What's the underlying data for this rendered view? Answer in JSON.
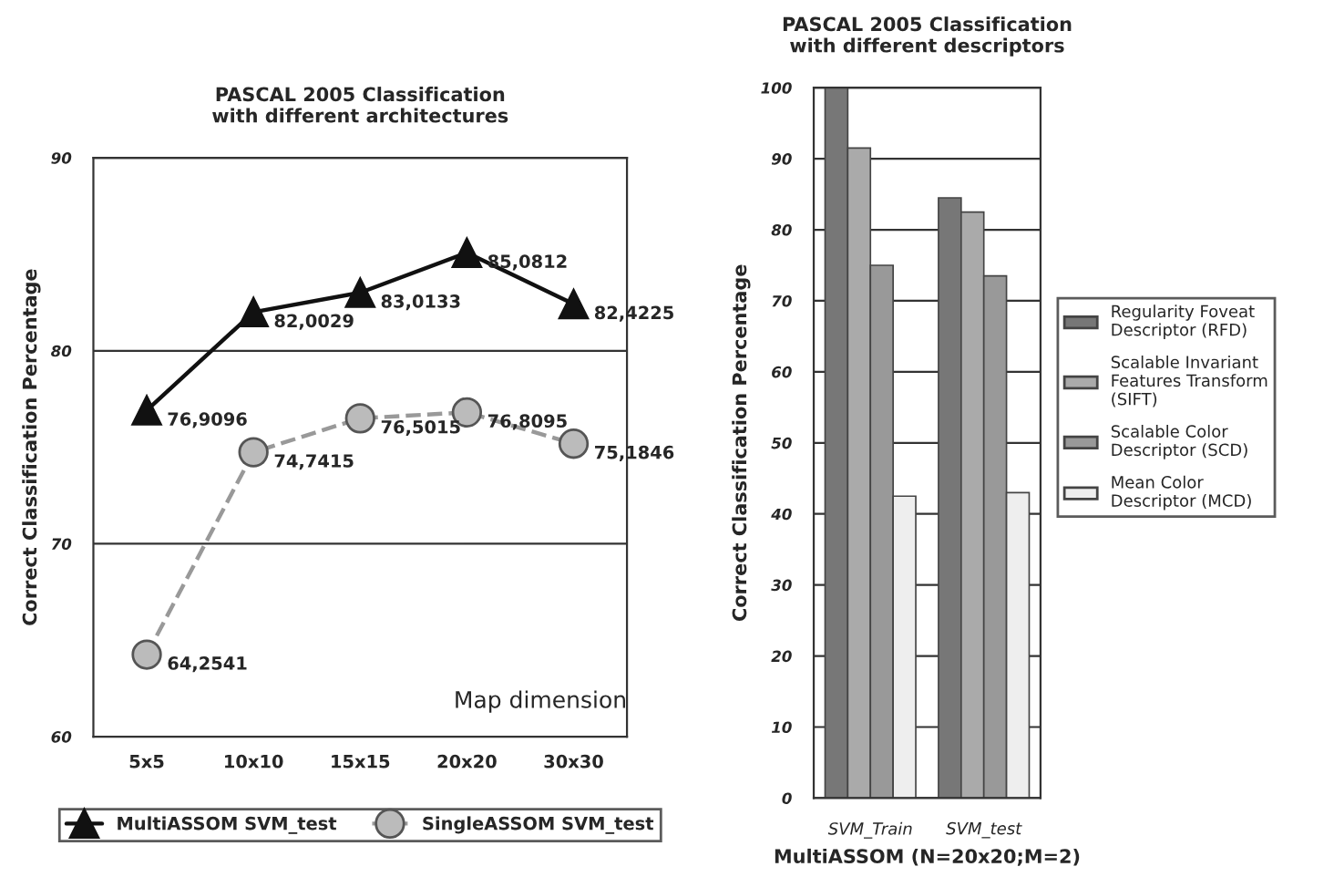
{
  "chart_data": [
    {
      "type": "line",
      "title": "PASCAL 2005 Classification\nwith different architectures",
      "xlabel": "Map dimension",
      "ylabel": "Correct Classification Percentage",
      "categories": [
        "5x5",
        "10x10",
        "15x15",
        "20x20",
        "30x30"
      ],
      "series": [
        {
          "name": "MultiASSOM SVM_test",
          "color": "#111111",
          "marker": "triangle",
          "line_style": "solid",
          "values": [
            76.9096,
            82.0029,
            83.0133,
            85.0812,
            82.4225
          ],
          "value_labels": [
            "76,9096",
            "82,0029",
            "83,0133",
            "85,0812",
            "82,4225"
          ]
        },
        {
          "name": "SingleASSOM SVM_test",
          "color": "#bbbbbb",
          "marker": "circle",
          "line_style": "dashed",
          "values": [
            64.2541,
            74.7415,
            76.5015,
            76.8095,
            75.1846
          ],
          "value_labels": [
            "64,2541",
            "74,7415",
            "76,5015",
            "76,8095",
            "75,1846"
          ]
        }
      ],
      "ylim": [
        60,
        90
      ],
      "yticks": [
        60,
        70,
        80,
        90
      ],
      "grid": "y",
      "legend": "bottom"
    },
    {
      "type": "bar",
      "title": "PASCAL 2005 Classification\nwith different descriptors",
      "xlabel": "MultiASSOM (N=20x20;M=2)",
      "ylabel": "Correct Classification Percentage",
      "categories": [
        "SVM_Train",
        "SVM_test"
      ],
      "series": [
        {
          "name": "Regularity Foveat\nDescriptor (RFD)",
          "color": "#777777",
          "values": [
            100,
            84.5
          ]
        },
        {
          "name": "Scalable Invariant\nFeatures Transform\n(SIFT)",
          "color": "#aaaaaa",
          "values": [
            91.5,
            82.5
          ]
        },
        {
          "name": "Scalable Color\nDescriptor (SCD)",
          "color": "#999999",
          "values": [
            75,
            73.5
          ]
        },
        {
          "name": "Mean Color\nDescriptor (MCD)",
          "color": "#eeeeee",
          "values": [
            42.5,
            43
          ]
        }
      ],
      "ylim": [
        0,
        100
      ],
      "yticks": [
        0,
        10,
        20,
        30,
        40,
        50,
        60,
        70,
        80,
        90,
        100
      ],
      "grid": "y",
      "legend": "right"
    }
  ]
}
